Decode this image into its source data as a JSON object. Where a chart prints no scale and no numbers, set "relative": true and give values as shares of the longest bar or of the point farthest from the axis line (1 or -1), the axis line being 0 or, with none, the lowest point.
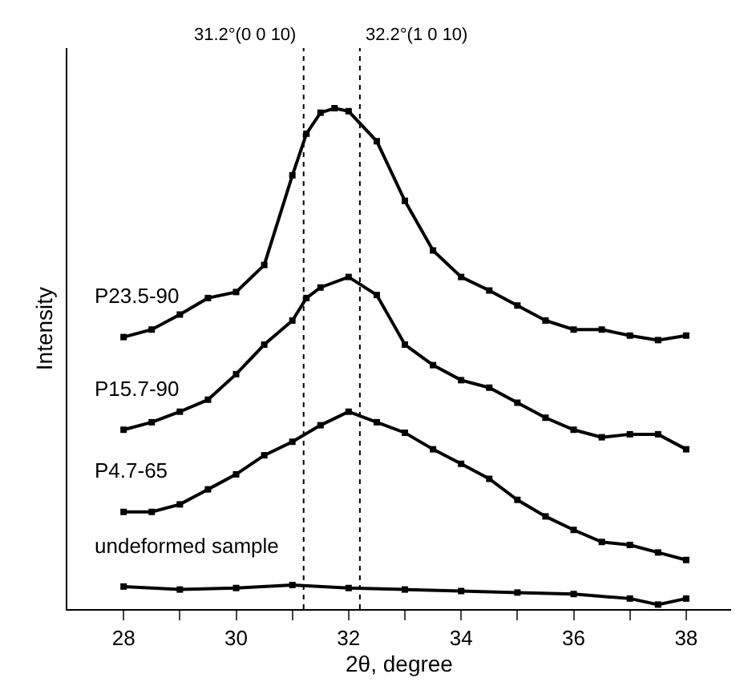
{
  "chart_data": {
    "type": "line",
    "relative": true,
    "xlabel": "2θ, degree",
    "ylabel": "Intensity",
    "marker": "square",
    "line_style": "solid",
    "legend": false,
    "tick_labels": "x",
    "xlim": [
      27.0,
      38.8
    ],
    "xticks": [
      28,
      {
        "value": 29,
        "label": null
      },
      30,
      {
        "value": 31,
        "label": null
      },
      32,
      {
        "value": 33,
        "label": null
      },
      34,
      {
        "value": 35,
        "label": null
      },
      36,
      {
        "value": 37,
        "label": null
      },
      38
    ],
    "ref_lines": [
      {
        "axis": "x",
        "value": 31.2,
        "label": "31.2°(0 0 10)",
        "color": "#000000",
        "line_style": "dotted"
      },
      {
        "axis": "x",
        "value": 32.2,
        "label": "32.2°(1 0 10)",
        "color": "#000000",
        "line_style": "dotted"
      }
    ],
    "series": [
      {
        "name": "P23.5-90",
        "color": "#000000",
        "x": [
          28,
          28.5,
          29,
          29.5,
          30,
          30.5,
          31,
          31.25,
          31.5,
          31.75,
          32,
          32.5,
          33,
          33.5,
          34,
          34.5,
          35,
          35.5,
          36,
          36.5,
          37,
          37.5,
          38
        ],
        "values": [
          0.543,
          0.558,
          0.588,
          0.621,
          0.633,
          0.687,
          0.866,
          0.949,
          0.991,
          1.0,
          0.994,
          0.934,
          0.815,
          0.716,
          0.663,
          0.636,
          0.606,
          0.576,
          0.558,
          0.558,
          0.546,
          0.537,
          0.546
        ]
      },
      {
        "name": "P15.7-90",
        "color": "#000000",
        "x": [
          28,
          28.5,
          29,
          29.5,
          30,
          30.5,
          31,
          31.25,
          31.5,
          32,
          32.5,
          33,
          33.5,
          34,
          34.5,
          35,
          35.5,
          36,
          36.5,
          37,
          37.5,
          38
        ],
        "values": [
          0.358,
          0.373,
          0.394,
          0.418,
          0.469,
          0.528,
          0.576,
          0.621,
          0.642,
          0.663,
          0.627,
          0.528,
          0.487,
          0.457,
          0.442,
          0.412,
          0.382,
          0.358,
          0.343,
          0.349,
          0.349,
          0.319
        ]
      },
      {
        "name": "P4.7-65",
        "color": "#000000",
        "x": [
          28,
          28.5,
          29,
          29.5,
          30,
          30.5,
          31,
          31.5,
          32,
          32.5,
          33,
          33.5,
          34,
          34.5,
          35,
          35.5,
          36,
          36.5,
          37,
          37.5,
          38
        ],
        "values": [
          0.194,
          0.194,
          0.209,
          0.239,
          0.269,
          0.307,
          0.334,
          0.367,
          0.394,
          0.373,
          0.352,
          0.319,
          0.29,
          0.26,
          0.218,
          0.185,
          0.158,
          0.134,
          0.128,
          0.113,
          0.098
        ]
      },
      {
        "name": "undeformed sample",
        "color": "#000000",
        "x": [
          28,
          29,
          30,
          31,
          32,
          33,
          34,
          35,
          36,
          37,
          37.5,
          38
        ],
        "values": [
          0.045,
          0.039,
          0.042,
          0.048,
          0.042,
          0.039,
          0.036,
          0.033,
          0.03,
          0.021,
          0.009,
          0.021
        ]
      }
    ]
  }
}
